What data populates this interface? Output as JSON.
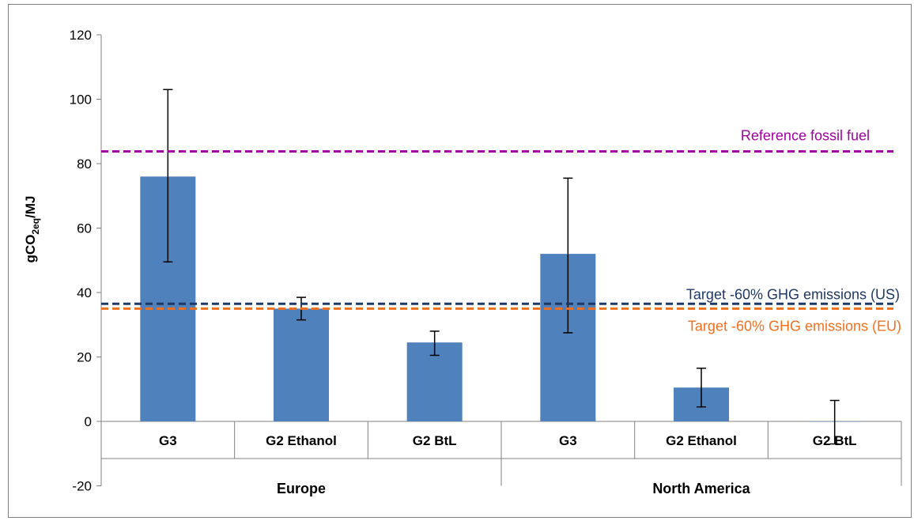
{
  "chart_data": {
    "type": "bar",
    "title": "",
    "ylabel_main": "gCO",
    "ylabel_sub": "2eq",
    "ylabel_tail": "/MJ",
    "ylim": [
      -20,
      120
    ],
    "yticks": [
      -20,
      0,
      20,
      40,
      60,
      80,
      100,
      120
    ],
    "grid": false,
    "groups": [
      {
        "name": "Europe",
        "categories": [
          "G3",
          "G2 Ethanol",
          "G2 BtL"
        ]
      },
      {
        "name": "North America",
        "categories": [
          "G3",
          "G2 Ethanol",
          "G2 BtL"
        ]
      }
    ],
    "series": [
      {
        "values": [
          76,
          35,
          24.5,
          52,
          10.5,
          0
        ],
        "error_low": [
          49.5,
          31.5,
          20.5,
          27.5,
          4.5,
          -7
        ],
        "error_high": [
          103,
          38.5,
          28,
          75.5,
          16.5,
          6.5
        ],
        "color": "#4f81bd"
      }
    ],
    "reference_lines": [
      {
        "label": "Reference fossil fuel",
        "value": 83.8,
        "color": "#a000a0"
      },
      {
        "label": "Target -60% GHG emissions (US)",
        "value": 36.5,
        "color": "#1f3864"
      },
      {
        "label": "Target -60% GHG emissions (EU)",
        "value": 35,
        "color": "#f07020"
      }
    ]
  }
}
